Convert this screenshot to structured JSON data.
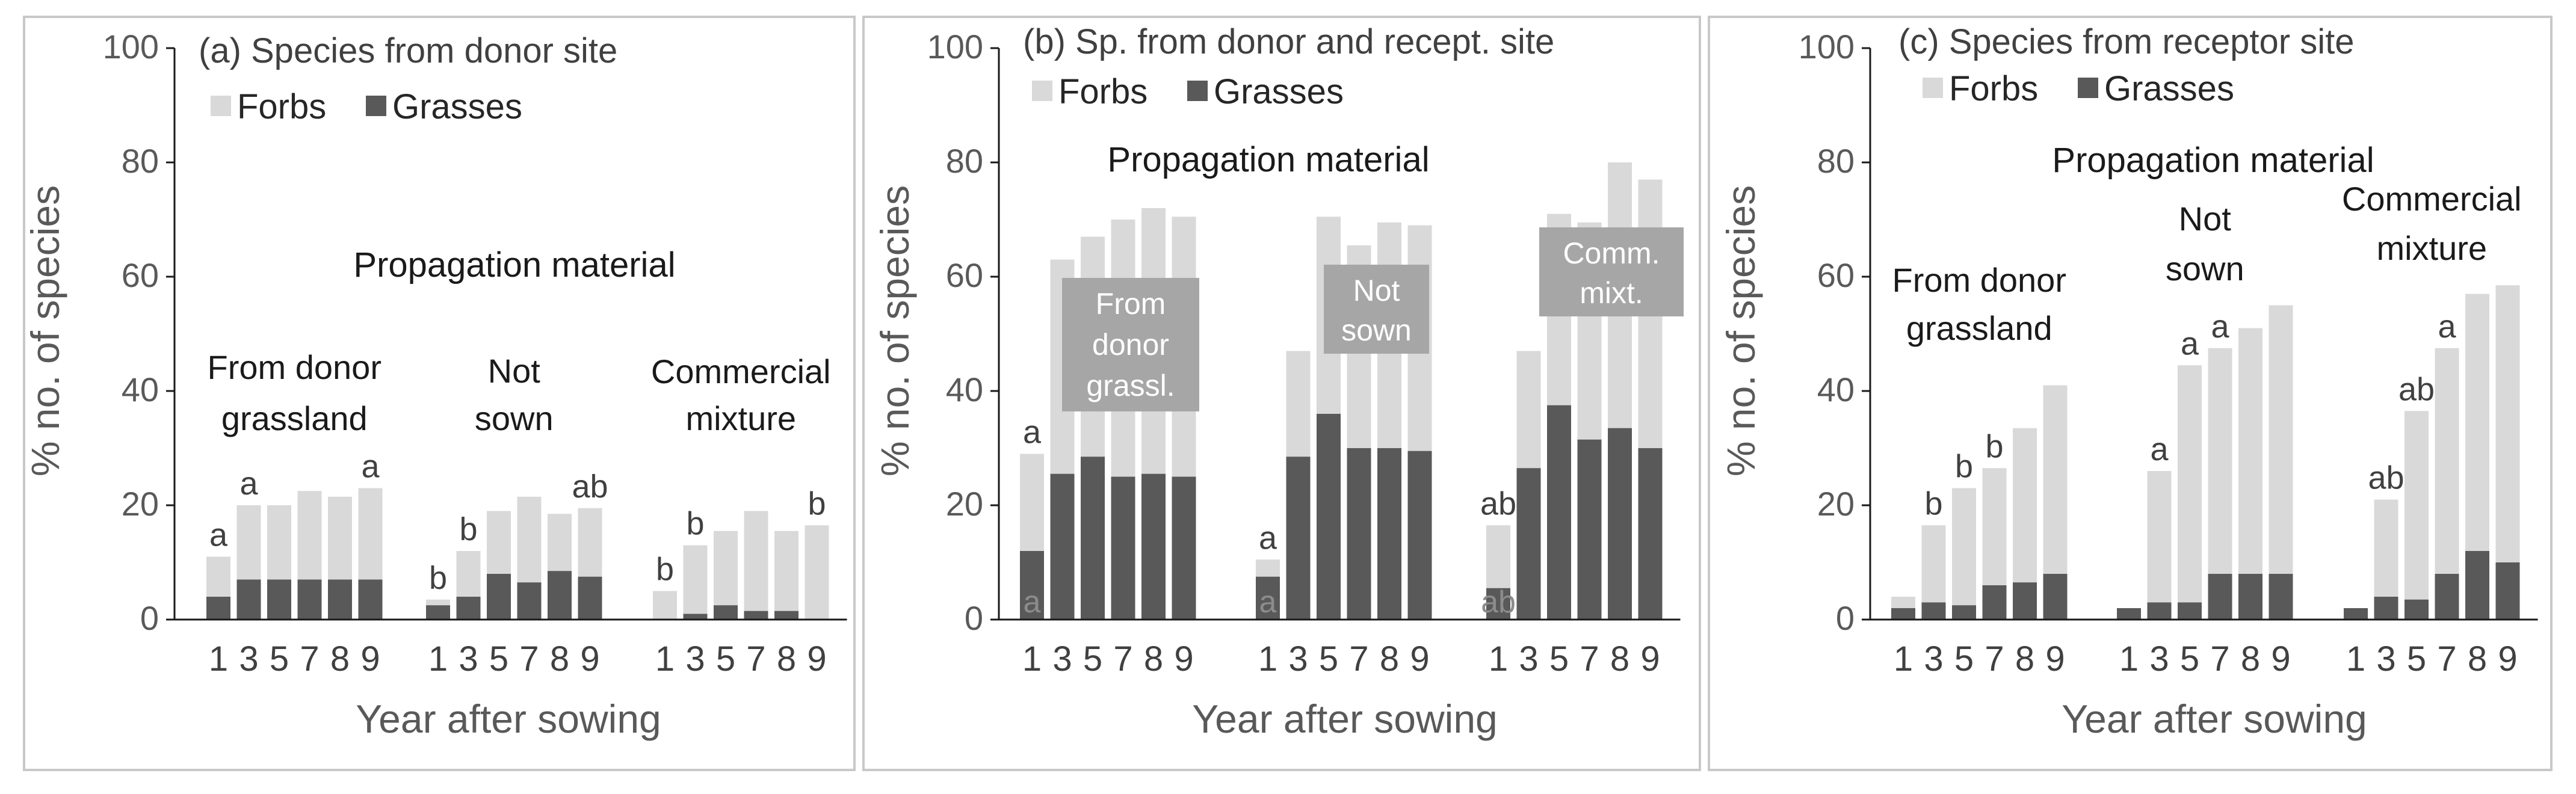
{
  "colors": {
    "forbs": "#d9d9d9",
    "grasses": "#595959",
    "boxFill": "#a6a6a6"
  },
  "chart_data": [
    {
      "type": "bar",
      "title": "(a) Species from donor site",
      "ylabel": "% no. of species",
      "xlabel": "Year after sowing",
      "ylim": [
        0,
        100
      ],
      "yticks": [
        "0",
        "20",
        "40",
        "60",
        "80",
        "100"
      ],
      "legend": [
        "Forbs",
        "Grasses"
      ],
      "group_heading": "Propagation material",
      "groups": [
        {
          "label": [
            "From donor",
            "grassland"
          ],
          "years": [
            "1",
            "3",
            "5",
            "7",
            "8",
            "9"
          ],
          "total": [
            11,
            20,
            20,
            22.5,
            21.5,
            23
          ],
          "grasses": [
            4,
            7,
            7,
            7,
            7,
            7
          ],
          "sig": [
            {
              "year": "1",
              "text": "a"
            },
            {
              "year": "3",
              "text": "a"
            },
            {
              "year": "9",
              "text": "a"
            }
          ]
        },
        {
          "label": [
            "Not",
            "sown"
          ],
          "years": [
            "1",
            "3",
            "5",
            "7",
            "8",
            "9"
          ],
          "total": [
            3.5,
            12,
            19,
            21.5,
            18.5,
            19.5
          ],
          "grasses": [
            2.5,
            4,
            8,
            6.5,
            8.5,
            7.5
          ],
          "sig": [
            {
              "year": "1",
              "text": "b"
            },
            {
              "year": "3",
              "text": "b"
            },
            {
              "year": "9",
              "text": "ab"
            }
          ]
        },
        {
          "label": [
            "Commercial",
            "mixture"
          ],
          "years": [
            "1",
            "3",
            "5",
            "7",
            "8",
            "9"
          ],
          "total": [
            5,
            13,
            15.5,
            19,
            15.5,
            16.5
          ],
          "grasses": [
            0,
            1,
            2.5,
            1.5,
            1.5,
            0
          ],
          "sig": [
            {
              "year": "1",
              "text": "b"
            },
            {
              "year": "3",
              "text": "b"
            },
            {
              "year": "9",
              "text": "b"
            }
          ]
        }
      ]
    },
    {
      "type": "bar",
      "title": "(b) Sp. from donor and recept. site",
      "ylabel": "% no. of species",
      "xlabel": "Year after sowing",
      "ylim": [
        0,
        100
      ],
      "yticks": [
        "0",
        "20",
        "40",
        "60",
        "80",
        "100"
      ],
      "legend": [
        "Forbs",
        "Grasses"
      ],
      "group_heading": "Propagation material",
      "groups": [
        {
          "label": [
            "From",
            "donor",
            "grassl."
          ],
          "years": [
            "1",
            "3",
            "5",
            "7",
            "8",
            "9"
          ],
          "total": [
            29,
            63,
            67,
            70,
            72,
            70.5
          ],
          "grasses": [
            12,
            25.5,
            28.5,
            25,
            25.5,
            25
          ],
          "sig": [
            {
              "year": "1",
              "text": "a"
            }
          ],
          "sig_inside": [
            {
              "year": "1",
              "text": "a"
            }
          ]
        },
        {
          "label": [
            "Not",
            "sown"
          ],
          "years": [
            "1",
            "3",
            "5",
            "7",
            "8",
            "9"
          ],
          "total": [
            10.5,
            47,
            70.5,
            65.5,
            69.5,
            69
          ],
          "grasses": [
            7.5,
            28.5,
            36,
            30,
            30,
            29.5
          ],
          "sig": [
            {
              "year": "1",
              "text": "a"
            }
          ],
          "sig_inside": [
            {
              "year": "1",
              "text": "a"
            }
          ]
        },
        {
          "label": [
            "Comm.",
            "mixt."
          ],
          "years": [
            "1",
            "3",
            "5",
            "7",
            "8",
            "9"
          ],
          "total": [
            16.5,
            47,
            71,
            69.5,
            80,
            77
          ],
          "grasses": [
            5.5,
            26.5,
            37.5,
            31.5,
            33.5,
            30
          ],
          "sig": [
            {
              "year": "1",
              "text": "ab"
            }
          ],
          "sig_inside": [
            {
              "year": "1",
              "text": "ab"
            }
          ]
        }
      ]
    },
    {
      "type": "bar",
      "title": "(c) Species from receptor site",
      "ylabel": "% no. of species",
      "xlabel": "Year after sowing",
      "ylim": [
        0,
        100
      ],
      "yticks": [
        "0",
        "20",
        "40",
        "60",
        "80",
        "100"
      ],
      "legend": [
        "Forbs",
        "Grasses"
      ],
      "group_heading": "Propagation material",
      "groups": [
        {
          "label": [
            "From donor",
            "grassland"
          ],
          "years": [
            "1",
            "3",
            "5",
            "7",
            "8",
            "9"
          ],
          "total": [
            4,
            16.5,
            23,
            26.5,
            33.5,
            41
          ],
          "grasses": [
            2,
            3,
            2.5,
            6,
            6.5,
            8
          ],
          "sig": [
            {
              "year": "3",
              "text": "b"
            },
            {
              "year": "5",
              "text": "b"
            },
            {
              "year": "7",
              "text": "b"
            }
          ]
        },
        {
          "label": [
            "Not",
            "sown"
          ],
          "years": [
            "1",
            "3",
            "5",
            "7",
            "8",
            "9"
          ],
          "total": [
            2,
            26,
            44.5,
            47.5,
            51,
            55
          ],
          "grasses": [
            2,
            3,
            3,
            8,
            8,
            8
          ],
          "sig": [
            {
              "year": "3",
              "text": "a"
            },
            {
              "year": "5",
              "text": "a"
            },
            {
              "year": "7",
              "text": "a"
            }
          ]
        },
        {
          "label": [
            "Commercial",
            "mixture"
          ],
          "years": [
            "1",
            "3",
            "5",
            "7",
            "8",
            "9"
          ],
          "total": [
            2,
            21,
            36.5,
            47.5,
            57,
            58.5
          ],
          "grasses": [
            2,
            4,
            3.5,
            8,
            12,
            10
          ],
          "sig": [
            {
              "year": "3",
              "text": "ab"
            },
            {
              "year": "5",
              "text": "ab"
            },
            {
              "year": "7",
              "text": "a"
            }
          ]
        }
      ]
    }
  ]
}
